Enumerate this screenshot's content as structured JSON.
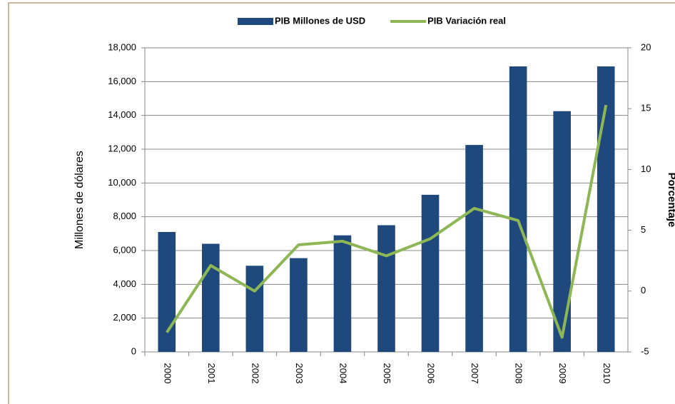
{
  "chart_data": {
    "type": "bar-line",
    "categories": [
      "2000",
      "2001",
      "2002",
      "2003",
      "2004",
      "2005",
      "2006",
      "2007",
      "2008",
      "2009",
      "2010"
    ],
    "series": [
      {
        "name": "PIB Millones de USD",
        "type": "bar",
        "color": "#1f497d",
        "values": [
          7100,
          6400,
          5100,
          5550,
          6900,
          7500,
          9300,
          12250,
          16900,
          14250,
          16900
        ]
      },
      {
        "name": "PIB Variación real",
        "type": "line",
        "axis": "y2",
        "color": "#8db754",
        "values": [
          -3.4,
          2.1,
          0.0,
          3.8,
          4.1,
          2.9,
          4.3,
          6.8,
          5.8,
          -3.8,
          15.3
        ]
      }
    ],
    "y_label": "Millones de dólares",
    "y2_label": "Porcentaje",
    "ylim": [
      0,
      18000
    ],
    "yticks": [
      0,
      {
        "value": 2000,
        "label": "2,000"
      },
      {
        "value": 4000,
        "label": "4,000"
      },
      {
        "value": 6000,
        "label": "6,000"
      },
      {
        "value": 8000,
        "label": "8,000"
      },
      {
        "value": 10000,
        "label": "10,000"
      },
      {
        "value": 12000,
        "label": "12,000"
      },
      {
        "value": 14000,
        "label": "14,000"
      },
      {
        "value": 16000,
        "label": "16,000"
      },
      {
        "value": 18000,
        "label": "18,000"
      }
    ],
    "y2lim": [
      -5,
      20
    ],
    "y2ticks": [
      -5,
      0,
      5,
      10,
      15,
      20
    ],
    "grid": true,
    "legend": "top"
  }
}
